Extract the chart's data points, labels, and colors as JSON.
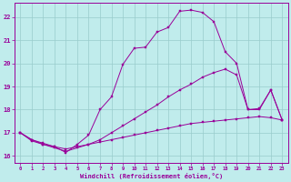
{
  "xlabel": "Windchill (Refroidissement éolien,°C)",
  "bg_color": "#c0ecec",
  "line_color": "#990099",
  "grid_color": "#99cccc",
  "xlim": [
    -0.5,
    23.5
  ],
  "ylim": [
    15.7,
    22.6
  ],
  "xticks": [
    0,
    1,
    2,
    3,
    4,
    5,
    6,
    7,
    8,
    9,
    10,
    11,
    12,
    13,
    14,
    15,
    16,
    17,
    18,
    19,
    20,
    21,
    22,
    23
  ],
  "yticks": [
    16,
    17,
    18,
    19,
    20,
    21,
    22
  ],
  "line1_x": [
    0,
    1,
    2,
    3,
    4,
    5,
    6,
    7,
    8,
    9,
    10,
    11,
    12,
    13,
    14,
    15,
    16,
    17,
    18,
    19,
    20,
    21,
    22,
    23
  ],
  "line1_y": [
    17.0,
    16.7,
    16.55,
    16.4,
    16.3,
    16.4,
    16.5,
    16.6,
    16.7,
    16.8,
    16.9,
    17.0,
    17.1,
    17.2,
    17.3,
    17.4,
    17.45,
    17.5,
    17.55,
    17.6,
    17.65,
    17.7,
    17.65,
    17.55
  ],
  "line2_x": [
    0,
    1,
    2,
    3,
    4,
    5,
    6,
    7,
    8,
    9,
    10,
    11,
    12,
    13,
    14,
    15,
    16,
    17,
    18,
    19,
    20,
    21,
    22,
    23
  ],
  "line2_y": [
    17.0,
    16.7,
    16.5,
    16.35,
    16.2,
    16.35,
    16.5,
    16.7,
    17.0,
    17.3,
    17.6,
    17.9,
    18.2,
    18.55,
    18.85,
    19.1,
    19.4,
    19.6,
    19.75,
    19.5,
    18.0,
    18.0,
    18.85,
    17.55
  ],
  "line3_x": [
    0,
    1,
    2,
    3,
    4,
    5,
    6,
    7,
    8,
    9,
    10,
    11,
    12,
    13,
    14,
    15,
    16,
    17,
    18,
    19,
    20,
    21,
    22,
    23
  ],
  "line3_y": [
    17.0,
    16.65,
    16.5,
    16.4,
    16.15,
    16.5,
    16.9,
    18.0,
    18.55,
    19.95,
    20.65,
    20.7,
    21.35,
    21.55,
    22.25,
    22.3,
    22.2,
    21.8,
    20.5,
    20.0,
    18.0,
    18.05,
    18.85,
    17.55
  ]
}
